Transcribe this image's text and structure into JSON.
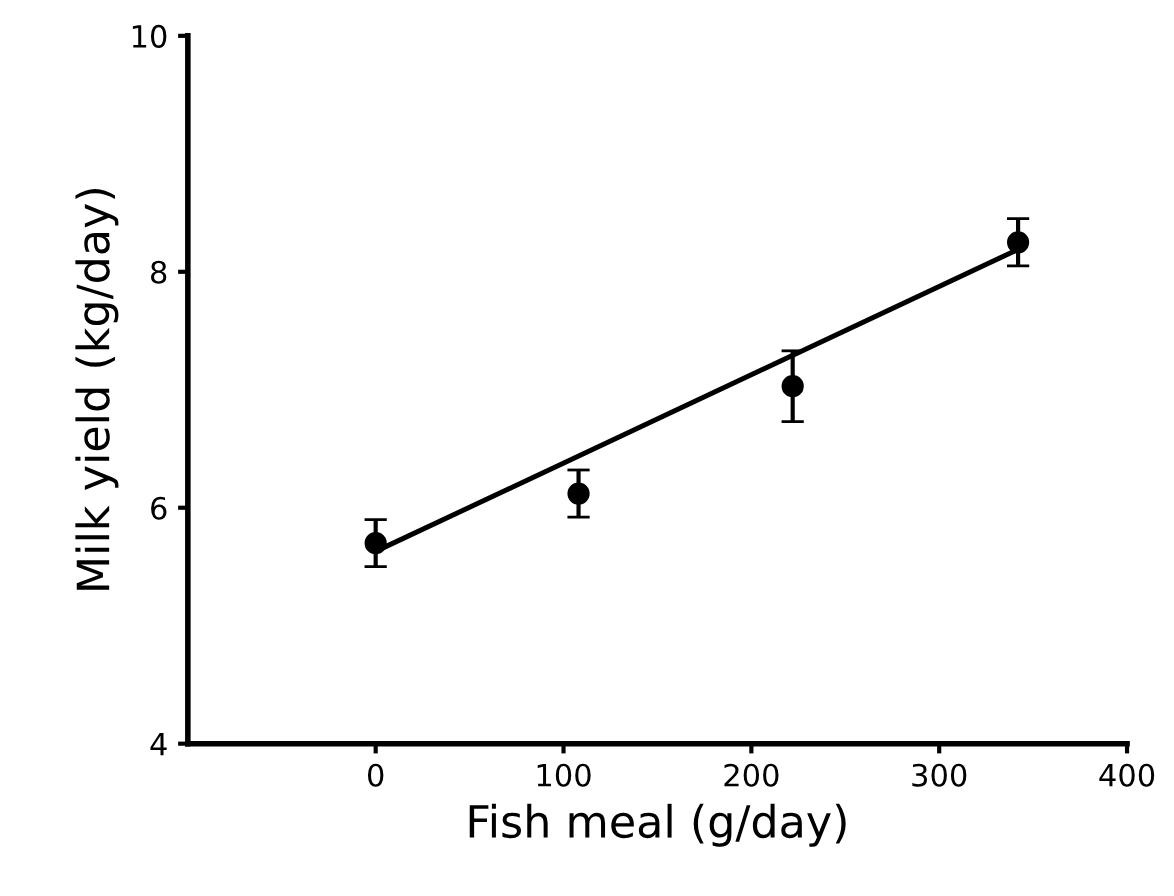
{
  "chart_data": {
    "type": "scatter",
    "xlabel": "Fish meal (g/day)",
    "ylabel": "Milk yield (kg/day)",
    "series": [
      {
        "color": "#000000",
        "x": [
          0,
          108,
          222,
          342
        ],
        "values": [
          5.7,
          6.12,
          7.03,
          8.25
        ],
        "errors": [
          0.2,
          0.2,
          0.3,
          0.2
        ],
        "marker": "circle"
      },
      {
        "type": "line",
        "color": "#000000",
        "x": [
          0,
          342
        ],
        "values": [
          5.63,
          8.19
        ],
        "marker": "none",
        "line_style": "solid"
      }
    ],
    "xlim": [
      -100,
      400
    ],
    "xticks": [
      0,
      100,
      200,
      300,
      400
    ],
    "ylim": [
      4,
      10
    ],
    "yticks": [
      4,
      6,
      8,
      10
    ],
    "grid": false,
    "legend": false
  }
}
